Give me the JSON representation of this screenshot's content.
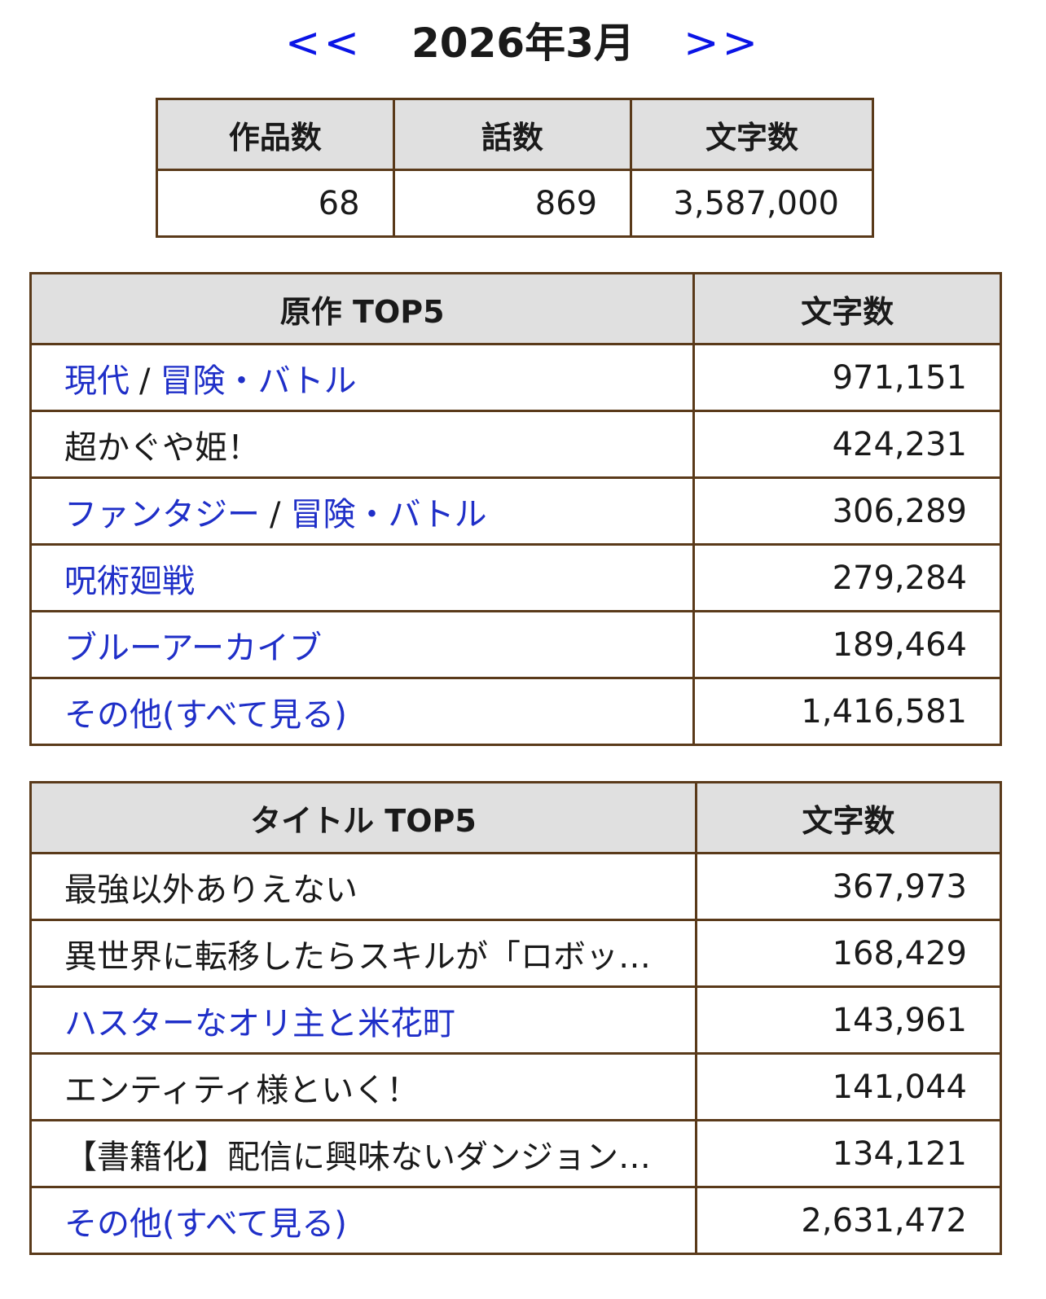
{
  "nav": {
    "prev": "<<",
    "month": "2026年3月",
    "next": ">>"
  },
  "summary": {
    "headers": [
      "作品数",
      "話数",
      "文字数"
    ],
    "values": [
      "68",
      "869",
      "3,587,000"
    ]
  },
  "original": {
    "header": "原作 TOP5",
    "count_header": "文字数",
    "rows": [
      {
        "parts": [
          "現代",
          "冒険・バトル"
        ],
        "value": "971,151",
        "link": true
      },
      {
        "parts": [
          "超かぐや姫！"
        ],
        "value": "424,231",
        "link": false
      },
      {
        "parts": [
          "ファンタジー",
          "冒険・バトル"
        ],
        "value": "306,289",
        "link": true
      },
      {
        "parts": [
          "呪術廻戦"
        ],
        "value": "279,284",
        "link": true
      },
      {
        "parts": [
          "ブルーアーカイブ"
        ],
        "value": "189,464",
        "link": true
      },
      {
        "parts": [
          "その他(すべて見る)"
        ],
        "value": "1,416,581",
        "link": true
      }
    ]
  },
  "title": {
    "header": "タイトル TOP5",
    "count_header": "文字数",
    "rows": [
      {
        "name": "最強以外ありえない",
        "value": "367,973",
        "link": false
      },
      {
        "name": "異世界に転移したらスキルが「ロボッ…",
        "value": "168,429",
        "link": false
      },
      {
        "name": "ハスターなオリ主と米花町",
        "value": "143,961",
        "link": true
      },
      {
        "name": "エンティティ様といく！",
        "value": "141,044",
        "link": false
      },
      {
        "name": "【書籍化】配信に興味ないダンジョン…",
        "value": "134,121",
        "link": false
      },
      {
        "name": "その他(すべて見る)",
        "value": "2,631,472",
        "link": true
      }
    ]
  },
  "colors": {
    "link": "#1f2fc8",
    "nav_arrow": "#0a14e6",
    "border": "#5a3a1a",
    "header_bg": "#e0e0e0"
  }
}
